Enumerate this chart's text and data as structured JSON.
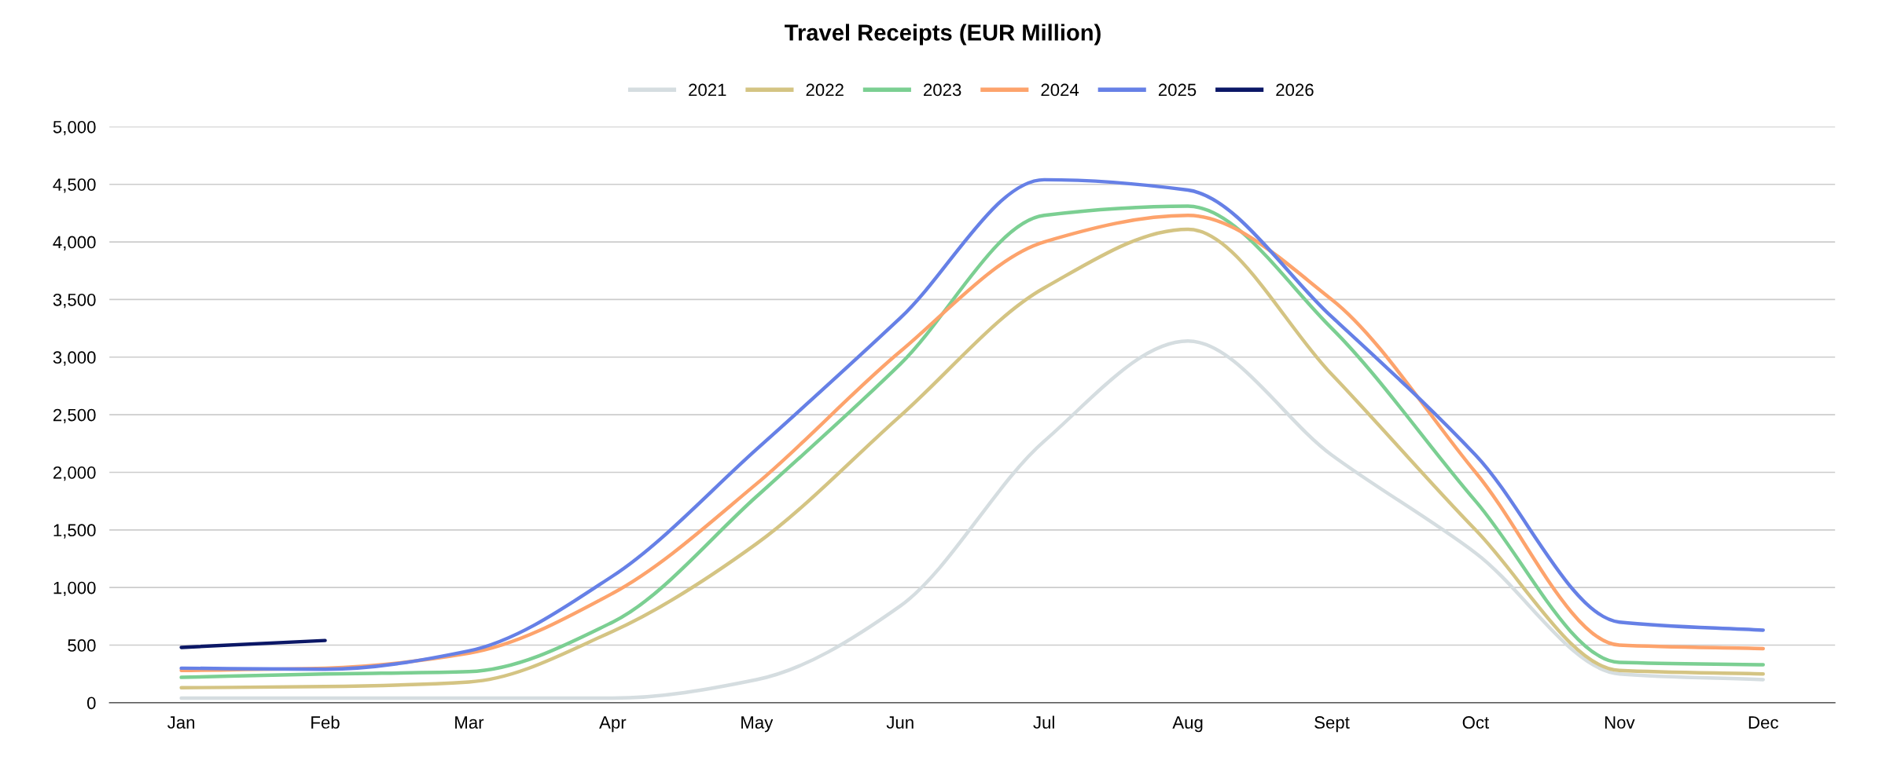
{
  "chart_data": {
    "type": "line",
    "title": "Travel Receipts (EUR Million)",
    "categories": [
      "Jan",
      "Feb",
      "Mar",
      "Apr",
      "May",
      "Jun",
      "Jul",
      "Aug",
      "Sept",
      "Oct",
      "Nov",
      "Dec"
    ],
    "series": [
      {
        "name": "2021",
        "color": "#d5dde0",
        "values": [
          40,
          40,
          40,
          40,
          200,
          840,
          2270,
          3140,
          2150,
          1300,
          250,
          200
        ]
      },
      {
        "name": "2022",
        "color": "#d4c483",
        "values": [
          130,
          140,
          180,
          620,
          1380,
          2490,
          3600,
          4110,
          2850,
          1500,
          280,
          250
        ]
      },
      {
        "name": "2023",
        "color": "#7bcf92",
        "values": [
          220,
          250,
          270,
          700,
          1790,
          2940,
          4230,
          4310,
          3250,
          1750,
          350,
          330
        ]
      },
      {
        "name": "2024",
        "color": "#fda36c",
        "values": [
          280,
          300,
          430,
          950,
          1900,
          3050,
          4000,
          4230,
          3500,
          2000,
          500,
          470
        ]
      },
      {
        "name": "2025",
        "color": "#6680e6",
        "values": [
          300,
          290,
          450,
          1100,
          2200,
          3340,
          4540,
          4450,
          3350,
          2150,
          700,
          630
        ]
      },
      {
        "name": "2026",
        "color": "#0b1766",
        "values": [
          480,
          540,
          null,
          null,
          null,
          null,
          null,
          null,
          null,
          null,
          null,
          null
        ]
      }
    ],
    "ylim": [
      0,
      5000
    ],
    "yticks": [
      0,
      500,
      {
        "value": 1000,
        "label": "1,000"
      },
      {
        "value": 1500,
        "label": "1,500"
      },
      {
        "value": 2000,
        "label": "2,000"
      },
      {
        "value": 2500,
        "label": "2,500"
      },
      {
        "value": 3000,
        "label": "3,000"
      },
      {
        "value": 3500,
        "label": "3,500"
      },
      {
        "value": 4000,
        "label": "4,000"
      },
      {
        "value": 4500,
        "label": "4,500"
      },
      {
        "value": 5000,
        "label": "5,000"
      }
    ],
    "grid": "y",
    "legend": "top",
    "marker": "none",
    "line_style": "solid"
  }
}
